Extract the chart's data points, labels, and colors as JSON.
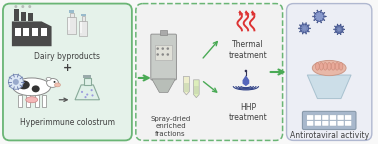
{
  "bg_color": "#f8f8f8",
  "box1_color": "#e5f2ea",
  "box2_color": "#f0f0f0",
  "box3_color": "#eceef5",
  "box_border_color": "#6ab575",
  "box2_border_color": "#6ab575",
  "box3_border_color": "#b0b8d0",
  "arrow_color": "#4aaa55",
  "text_color": "#404040",
  "red_color": "#dd3333",
  "dark_icon": "#4a4a4a",
  "label1_top": "Dairy byproducts",
  "label1_plus": "+",
  "label1_bot": "Hyperimmune colostrum",
  "label2": "Spray-dried\nenriched\nfractions",
  "label3_top": "Thermal\ntreatment",
  "label3_bot": "HHP\ntreatment",
  "label4": "Antirotaviral activity",
  "figsize": [
    3.78,
    1.44
  ],
  "dpi": 100
}
